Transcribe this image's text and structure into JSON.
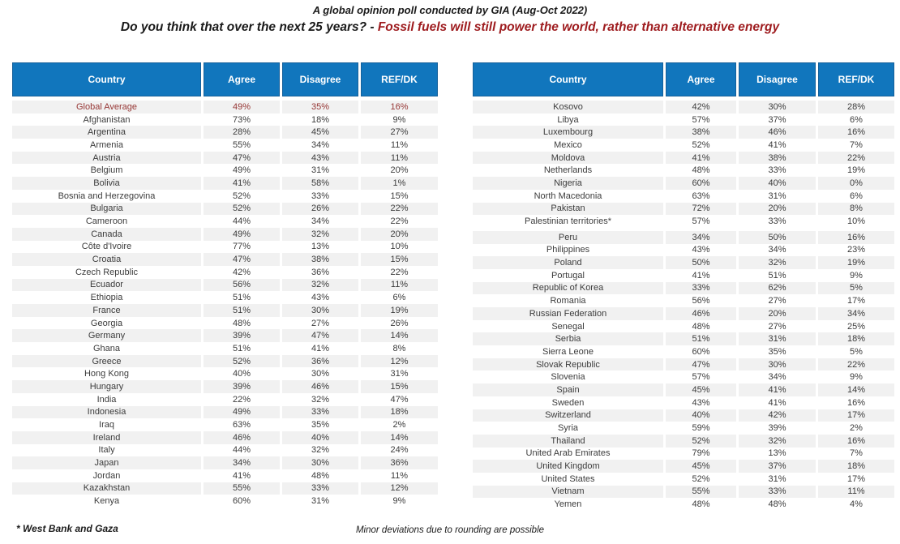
{
  "colors": {
    "header_bg": "#1176BD",
    "header_border": "#15609A",
    "header_text": "#FFFFFF",
    "row_alt_bg": "#F1F1F1",
    "body_text": "#3C3C3C",
    "global_average_text": "#963634",
    "subtitle_highlight": "#9E1B1E"
  },
  "chart_data": {
    "type": "table",
    "title": "A global opinion poll conducted by GIA (Aug-Oct 2022)",
    "subtitle_prefix": "Do you think that over the next 25 years? - ",
    "subtitle_highlight": "Fossil fuels will still power the world, rather than alternative energy",
    "columns": [
      "Country",
      "Agree",
      "Disagree",
      "REF/DK"
    ],
    "tables": [
      {
        "rows": [
          {
            "cells": [
              "Global Average",
              "49%",
              "35%",
              "16%"
            ],
            "highlight": true
          },
          {
            "cells": [
              "Afghanistan",
              "73%",
              "18%",
              "9%"
            ]
          },
          {
            "cells": [
              "Argentina",
              "28%",
              "45%",
              "27%"
            ]
          },
          {
            "cells": [
              "Armenia",
              "55%",
              "34%",
              "11%"
            ]
          },
          {
            "cells": [
              "Austria",
              "47%",
              "43%",
              "11%"
            ]
          },
          {
            "cells": [
              "Belgium",
              "49%",
              "31%",
              "20%"
            ]
          },
          {
            "cells": [
              "Bolivia",
              "41%",
              "58%",
              "1%"
            ]
          },
          {
            "cells": [
              "Bosnia and Herzegovina",
              "52%",
              "33%",
              "15%"
            ]
          },
          {
            "cells": [
              "Bulgaria",
              "52%",
              "26%",
              "22%"
            ]
          },
          {
            "cells": [
              "Cameroon",
              "44%",
              "34%",
              "22%"
            ]
          },
          {
            "cells": [
              "Canada",
              "49%",
              "32%",
              "20%"
            ]
          },
          {
            "cells": [
              "Côte d'Ivoire",
              "77%",
              "13%",
              "10%"
            ]
          },
          {
            "cells": [
              "Croatia",
              "47%",
              "38%",
              "15%"
            ]
          },
          {
            "cells": [
              "Czech Republic",
              "42%",
              "36%",
              "22%"
            ]
          },
          {
            "cells": [
              "Ecuador",
              "56%",
              "32%",
              "11%"
            ]
          },
          {
            "cells": [
              "Ethiopia",
              "51%",
              "43%",
              "6%"
            ]
          },
          {
            "cells": [
              "France",
              "51%",
              "30%",
              "19%"
            ]
          },
          {
            "cells": [
              "Georgia",
              "48%",
              "27%",
              "26%"
            ]
          },
          {
            "cells": [
              "Germany",
              "39%",
              "47%",
              "14%"
            ]
          },
          {
            "cells": [
              "Ghana",
              "51%",
              "41%",
              "8%"
            ]
          },
          {
            "cells": [
              "Greece",
              "52%",
              "36%",
              "12%"
            ]
          },
          {
            "cells": [
              "Hong Kong",
              "40%",
              "30%",
              "31%"
            ]
          },
          {
            "cells": [
              "Hungary",
              "39%",
              "46%",
              "15%"
            ]
          },
          {
            "cells": [
              "India",
              "22%",
              "32%",
              "47%"
            ]
          },
          {
            "cells": [
              "Indonesia",
              "49%",
              "33%",
              "18%"
            ]
          },
          {
            "cells": [
              "Iraq",
              "63%",
              "35%",
              "2%"
            ]
          },
          {
            "cells": [
              "Ireland",
              "46%",
              "40%",
              "14%"
            ]
          },
          {
            "cells": [
              "Italy",
              "44%",
              "32%",
              "24%"
            ]
          },
          {
            "cells": [
              "Japan",
              "34%",
              "30%",
              "36%"
            ]
          },
          {
            "cells": [
              "Jordan",
              "41%",
              "48%",
              "11%"
            ]
          },
          {
            "cells": [
              "Kazakhstan",
              "55%",
              "33%",
              "12%"
            ]
          },
          {
            "cells": [
              "Kenya",
              "60%",
              "31%",
              "9%"
            ]
          }
        ]
      },
      {
        "rows": [
          {
            "cells": [
              "Kosovo",
              "42%",
              "30%",
              "28%"
            ]
          },
          {
            "cells": [
              "Libya",
              "57%",
              "37%",
              "6%"
            ]
          },
          {
            "cells": [
              "Luxembourg",
              "38%",
              "46%",
              "16%"
            ]
          },
          {
            "cells": [
              "Mexico",
              "52%",
              "41%",
              "7%"
            ]
          },
          {
            "cells": [
              "Moldova",
              "41%",
              "38%",
              "22%"
            ]
          },
          {
            "cells": [
              "Netherlands",
              "48%",
              "33%",
              "19%"
            ]
          },
          {
            "cells": [
              "Nigeria",
              "60%",
              "40%",
              "0%"
            ]
          },
          {
            "cells": [
              "North Macedonia",
              "63%",
              "31%",
              "6%"
            ]
          },
          {
            "cells": [
              "Pakistan",
              "72%",
              "20%",
              "8%"
            ]
          },
          {
            "cells": [
              "Palestinian territories*",
              "57%",
              "33%",
              "10%"
            ],
            "gap_after": true
          },
          {
            "cells": [
              "Peru",
              "34%",
              "50%",
              "16%"
            ]
          },
          {
            "cells": [
              "Philippines",
              "43%",
              "34%",
              "23%"
            ]
          },
          {
            "cells": [
              "Poland",
              "50%",
              "32%",
              "19%"
            ]
          },
          {
            "cells": [
              "Portugal",
              "41%",
              "51%",
              "9%"
            ]
          },
          {
            "cells": [
              "Republic of Korea",
              "33%",
              "62%",
              "5%"
            ]
          },
          {
            "cells": [
              "Romania",
              "56%",
              "27%",
              "17%"
            ]
          },
          {
            "cells": [
              "Russian Federation",
              "46%",
              "20%",
              "34%"
            ]
          },
          {
            "cells": [
              "Senegal",
              "48%",
              "27%",
              "25%"
            ]
          },
          {
            "cells": [
              "Serbia",
              "51%",
              "31%",
              "18%"
            ]
          },
          {
            "cells": [
              "Sierra Leone",
              "60%",
              "35%",
              "5%"
            ]
          },
          {
            "cells": [
              "Slovak Republic",
              "47%",
              "30%",
              "22%"
            ]
          },
          {
            "cells": [
              "Slovenia",
              "57%",
              "34%",
              "9%"
            ]
          },
          {
            "cells": [
              "Spain",
              "45%",
              "41%",
              "14%"
            ]
          },
          {
            "cells": [
              "Sweden",
              "43%",
              "41%",
              "16%"
            ]
          },
          {
            "cells": [
              "Switzerland",
              "40%",
              "42%",
              "17%"
            ]
          },
          {
            "cells": [
              "Syria",
              "59%",
              "39%",
              "2%"
            ]
          },
          {
            "cells": [
              "Thailand",
              "52%",
              "32%",
              "16%"
            ]
          },
          {
            "cells": [
              "United Arab Emirates",
              "79%",
              "13%",
              "7%"
            ]
          },
          {
            "cells": [
              "United Kingdom",
              "45%",
              "37%",
              "18%"
            ]
          },
          {
            "cells": [
              "United States",
              "52%",
              "31%",
              "17%"
            ]
          },
          {
            "cells": [
              "Vietnam",
              "55%",
              "33%",
              "11%"
            ]
          },
          {
            "cells": [
              "Yemen",
              "48%",
              "48%",
              "4%"
            ]
          }
        ]
      }
    ],
    "footnotes": {
      "left": "* West Bank and Gaza",
      "center": "Minor deviations due to rounding are possible"
    }
  }
}
